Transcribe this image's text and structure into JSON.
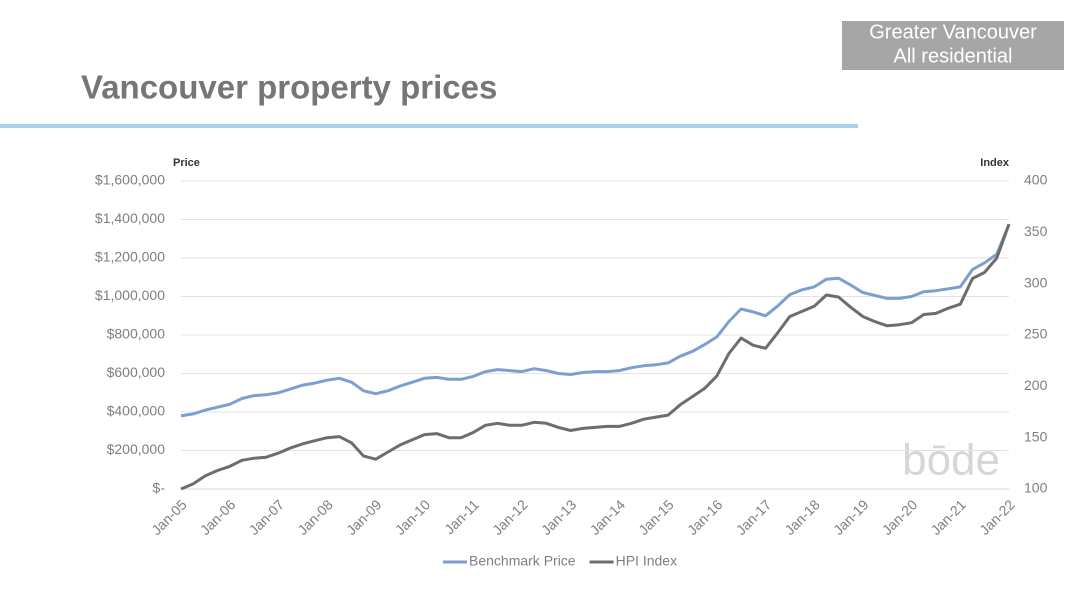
{
  "chart_data": {
    "type": "line",
    "title": "Vancouver property prices",
    "badge": [
      "Greater Vancouver",
      "All residential"
    ],
    "brand": "bōde",
    "y_label": "Price",
    "y2_label": "Index",
    "categories": [
      "Jan-05",
      null,
      null,
      null,
      "Jan-06",
      null,
      null,
      null,
      "Jan-07",
      null,
      null,
      null,
      "Jan-08",
      null,
      null,
      null,
      "Jan-09",
      null,
      null,
      null,
      "Jan-10",
      null,
      null,
      null,
      "Jan-11",
      null,
      null,
      null,
      "Jan-12",
      null,
      null,
      null,
      "Jan-13",
      null,
      null,
      null,
      "Jan-14",
      null,
      null,
      null,
      "Jan-15",
      null,
      null,
      null,
      "Jan-16",
      null,
      null,
      null,
      "Jan-17",
      null,
      null,
      null,
      "Jan-18",
      null,
      null,
      null,
      "Jan-19",
      null,
      null,
      null,
      "Jan-20",
      null,
      null,
      null,
      "Jan-21",
      null,
      null,
      null,
      "Jan-22"
    ],
    "series": [
      {
        "name": "Benchmark Price",
        "color": "#7b9fd1",
        "axis": "y",
        "values": [
          380000,
          390000,
          410000,
          425000,
          440000,
          470000,
          485000,
          490000,
          500000,
          520000,
          540000,
          550000,
          565000,
          575000,
          555000,
          510000,
          495000,
          510000,
          535000,
          555000,
          575000,
          580000,
          570000,
          570000,
          585000,
          610000,
          620000,
          615000,
          610000,
          625000,
          615000,
          600000,
          595000,
          605000,
          610000,
          610000,
          615000,
          630000,
          640000,
          645000,
          655000,
          690000,
          715000,
          750000,
          790000,
          870000,
          935000,
          920000,
          900000,
          950000,
          1010000,
          1035000,
          1050000,
          1090000,
          1095000,
          1060000,
          1020000,
          1005000,
          990000,
          990000,
          1000000,
          1025000,
          1030000,
          1040000,
          1050000,
          1140000,
          1175000,
          1220000,
          1375000
        ]
      },
      {
        "name": "HPI Index",
        "color": "#6d6d6d",
        "axis": "y2",
        "values": [
          100,
          105,
          113,
          118,
          122,
          128,
          130,
          131,
          135,
          140,
          144,
          147,
          150,
          151,
          145,
          132,
          129,
          136,
          143,
          148,
          153,
          154,
          150,
          150,
          155,
          162,
          164,
          162,
          162,
          165,
          164,
          160,
          157,
          159,
          160,
          161,
          161,
          164,
          168,
          170,
          172,
          182,
          190,
          198,
          210,
          232,
          247,
          240,
          237,
          252,
          268,
          273,
          278,
          289,
          287,
          277,
          268,
          263,
          259,
          260,
          262,
          270,
          271,
          276,
          280,
          305,
          311,
          325,
          358
        ]
      }
    ],
    "ylim": [
      0,
      1600000
    ],
    "yticks": [
      {
        "value": 0,
        "label": "$-"
      },
      {
        "value": 200000,
        "label": "$200,000"
      },
      {
        "value": 400000,
        "label": "$400,000"
      },
      {
        "value": 600000,
        "label": "$600,000"
      },
      {
        "value": 800000,
        "label": "$800,000"
      },
      {
        "value": 1000000,
        "label": "$1,000,000"
      },
      {
        "value": 1200000,
        "label": "$1,200,000"
      },
      {
        "value": 1400000,
        "label": "$1,400,000"
      },
      {
        "value": 1600000,
        "label": "$1,600,000"
      }
    ],
    "y2lim": [
      100,
      400
    ],
    "y2ticks": [
      100,
      150,
      200,
      250,
      300,
      350,
      400
    ],
    "grid": true,
    "legend": "bottom"
  }
}
